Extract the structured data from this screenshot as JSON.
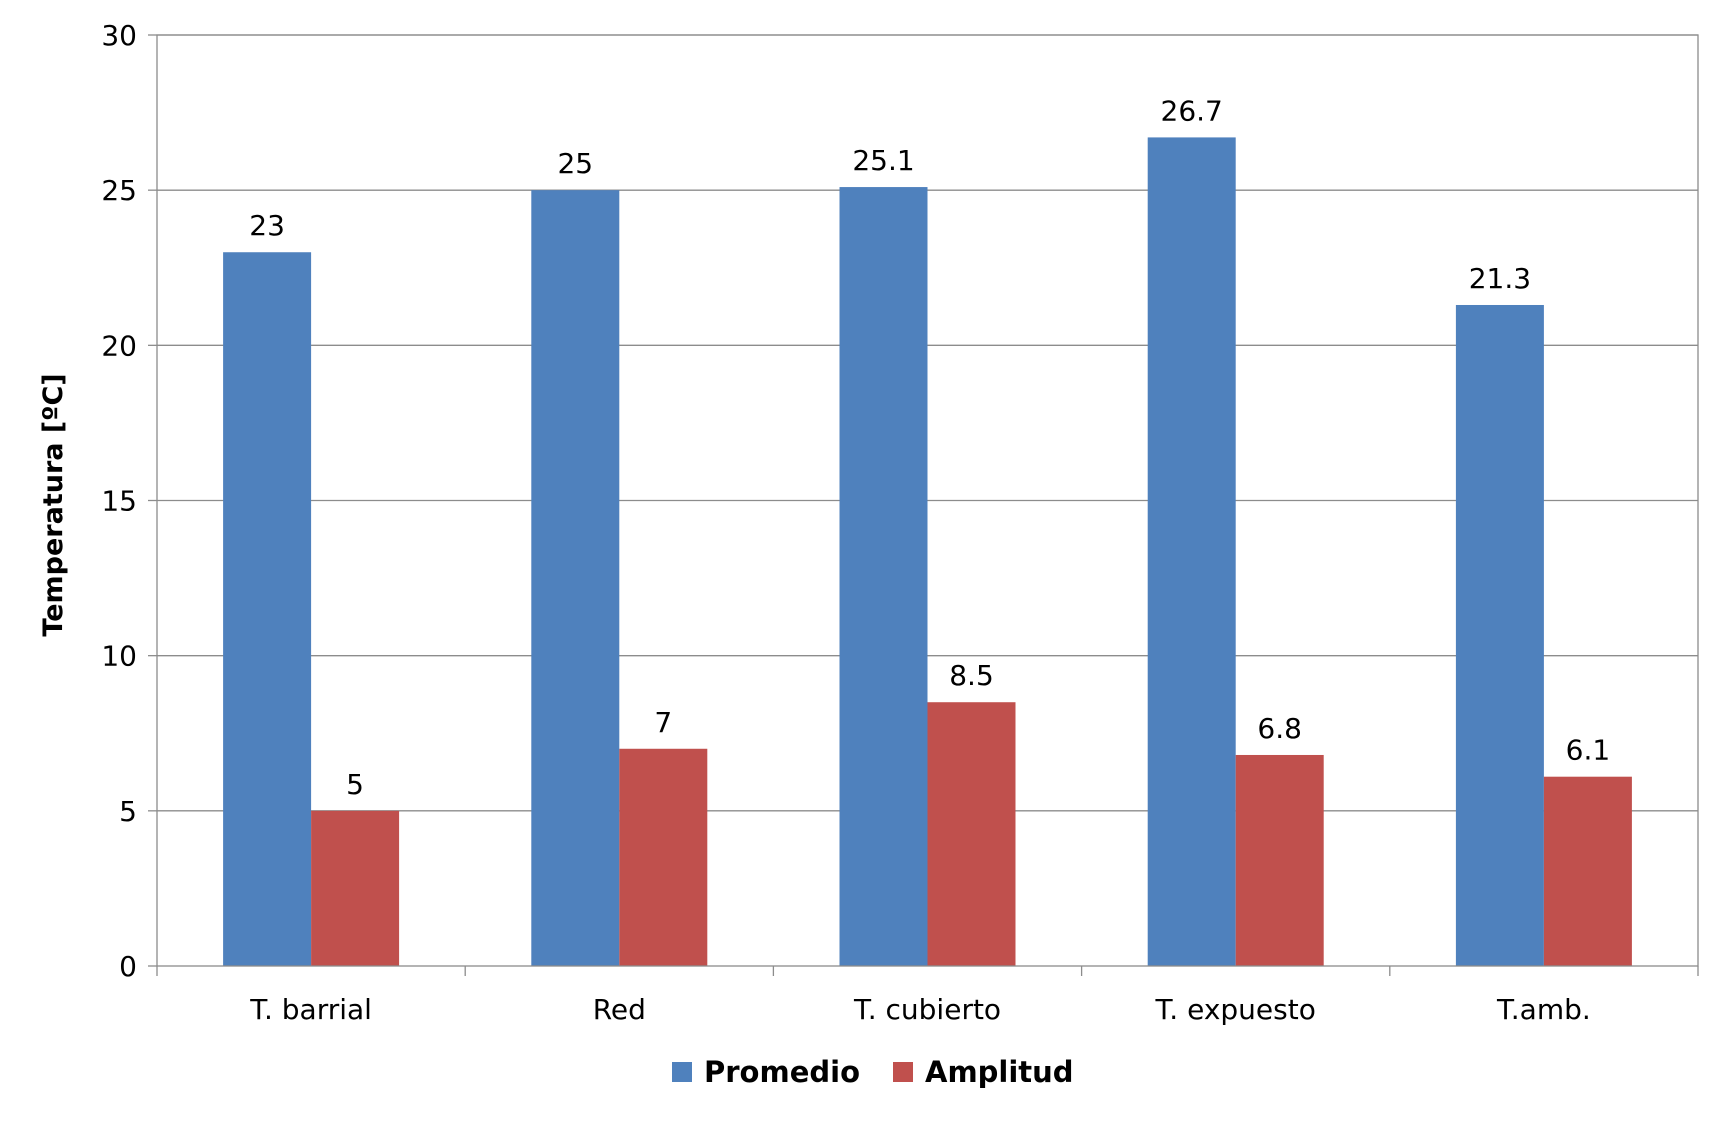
{
  "chart_data": {
    "type": "bar",
    "title": "",
    "xlabel": "",
    "ylabel": "Temperatura [ºC]",
    "ylim": [
      0,
      30
    ],
    "yticks": [
      0,
      5,
      10,
      15,
      20,
      25,
      30
    ],
    "grid": true,
    "legend_position": "bottom",
    "categories": [
      "T. barrial",
      "Red",
      "T. cubierto",
      "T. expuesto",
      "T.amb."
    ],
    "series": [
      {
        "name": "Promedio",
        "color": "#4F81BD",
        "values": [
          23,
          25,
          25.1,
          26.7,
          21.3
        ],
        "labels": [
          "23",
          "25",
          "25.1",
          "26.7",
          "21.3"
        ]
      },
      {
        "name": "Amplitud",
        "color": "#C0504D",
        "values": [
          5,
          7,
          8.5,
          6.8,
          6.1
        ],
        "labels": [
          "5",
          "7",
          "8.5",
          "6.8",
          "6.1"
        ]
      }
    ]
  }
}
